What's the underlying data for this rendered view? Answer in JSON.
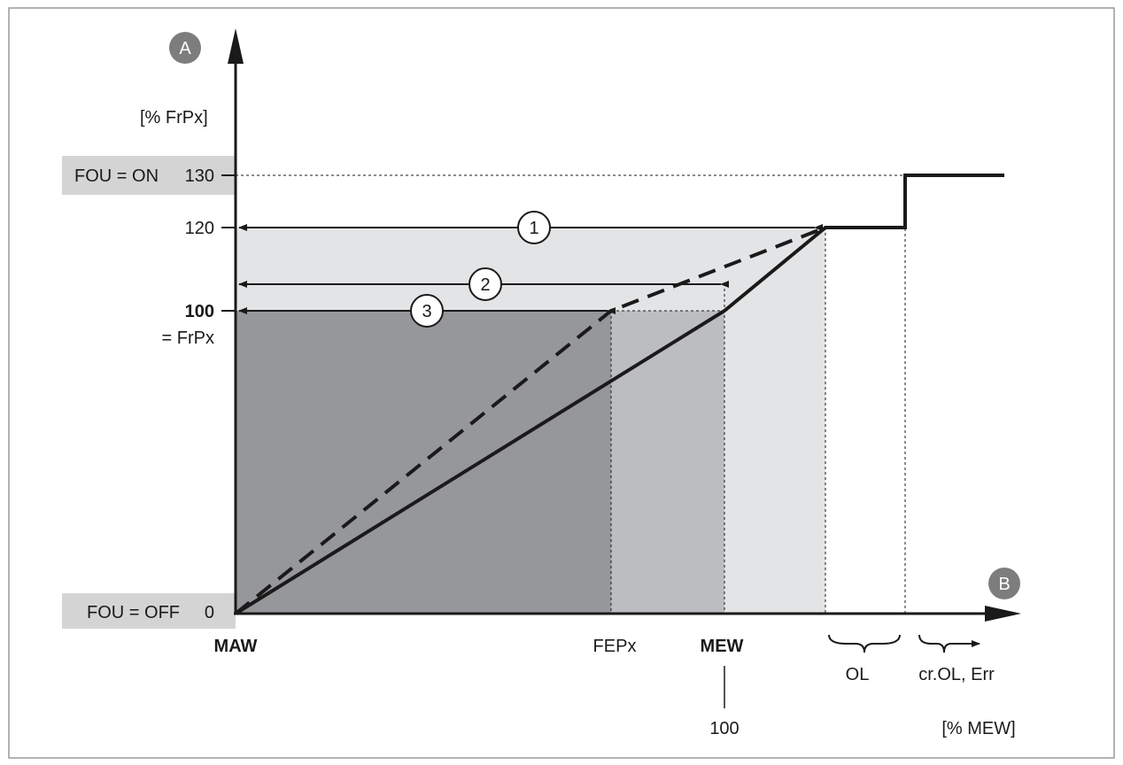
{
  "axis_badges": {
    "y": "A",
    "x": "B"
  },
  "y_axis": {
    "unit_label": "[% FrPx]",
    "fou_on_label": "FOU = ON",
    "tick_130": "130",
    "tick_120": "120",
    "tick_100": "100",
    "tick_100_sub": "= FrPx",
    "fou_off_label": "FOU = OFF",
    "tick_0": "0"
  },
  "x_axis": {
    "start_label": "MAW",
    "fepx_label": "FEPx",
    "mew_label": "MEW",
    "mew_value": "100",
    "unit_label": "[% MEW]",
    "ol_label": "OL",
    "err_label": "cr.OL, Err"
  },
  "markers": [
    "1",
    "2",
    "3"
  ],
  "colors": {
    "region_light": "#e3e4e6",
    "region_mid": "#bcbdc0",
    "region_dark": "#96979a",
    "fou_box": "#d4d4d4",
    "badge": "#7d7d7d",
    "line": "#1a1a1a"
  }
}
